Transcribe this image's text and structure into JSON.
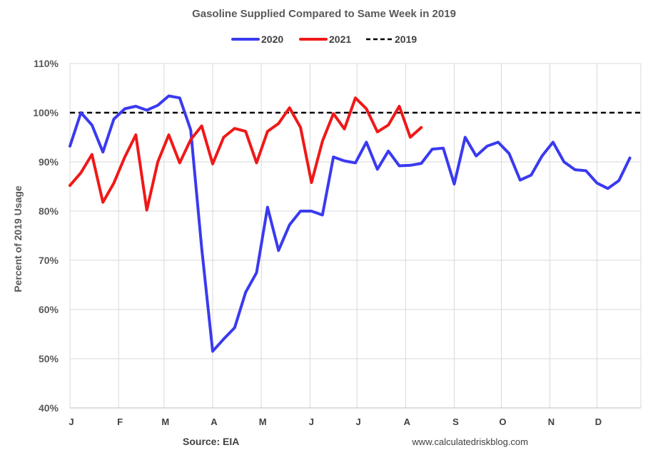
{
  "chart_data": {
    "type": "line",
    "title": "Gasoline Supplied Compared to Same Week in 2019",
    "ylabel": "Percent of 2019 Usage",
    "xlabel": "",
    "ylim": [
      40,
      110
    ],
    "yticks": [
      40,
      50,
      60,
      70,
      80,
      90,
      100,
      110
    ],
    "ytick_labels": [
      "40%",
      "50%",
      "60%",
      "70%",
      "80%",
      "90%",
      "100%",
      "110%"
    ],
    "x_range": [
      1,
      53
    ],
    "month_ticks": [
      {
        "label": "J",
        "week": 1
      },
      {
        "label": "F",
        "week": 5.43
      },
      {
        "label": "M",
        "week": 9.57
      },
      {
        "label": "A",
        "week": 14
      },
      {
        "label": "M",
        "week": 18.43
      },
      {
        "label": "J",
        "week": 22.86
      },
      {
        "label": "J",
        "week": 27.14
      },
      {
        "label": "A",
        "week": 31.57
      },
      {
        "label": "S",
        "week": 36
      },
      {
        "label": "O",
        "week": 40.29
      },
      {
        "label": "N",
        "week": 44.71
      },
      {
        "label": "D",
        "week": 49
      }
    ],
    "grid": true,
    "legend_position": "top-center",
    "series": [
      {
        "name": "2020",
        "color": "#3a3af0",
        "dash": "solid",
        "values": [
          93.2,
          100.0,
          97.5,
          92.0,
          98.7,
          100.8,
          101.3,
          100.5,
          101.5,
          103.4,
          103.0,
          96.5,
          72.5,
          51.5,
          54.0,
          56.3,
          63.5,
          67.5,
          80.8,
          72.0,
          77.2,
          80.0,
          80.0,
          79.2,
          91.0,
          90.2,
          89.8,
          94.0,
          88.5,
          92.2,
          89.2,
          89.3,
          89.7,
          92.6,
          92.8,
          85.5,
          95.0,
          91.2,
          93.2,
          94.0,
          91.7,
          86.3,
          87.3,
          91.2,
          94.0,
          90.0,
          88.4,
          88.2,
          85.7,
          84.6,
          86.2,
          90.8
        ]
      },
      {
        "name": "2021",
        "color": "#f01818",
        "dash": "solid",
        "values": [
          85.2,
          87.8,
          91.5,
          81.8,
          85.7,
          91.0,
          95.5,
          80.2,
          90.0,
          95.5,
          89.8,
          94.5,
          97.3,
          89.6,
          95.0,
          96.8,
          96.2,
          89.8,
          96.2,
          97.8,
          101.0,
          97.0,
          85.8,
          94.2,
          99.8,
          96.7,
          103.0,
          100.8,
          96.1,
          97.5,
          101.3,
          95.0,
          97.0
        ]
      },
      {
        "name": "2019",
        "color": "#000000",
        "dash": "dashed",
        "values": [
          100,
          100
        ]
      }
    ]
  },
  "footer": {
    "source": "Source: EIA",
    "site": "www.calculatedriskblog.com"
  }
}
